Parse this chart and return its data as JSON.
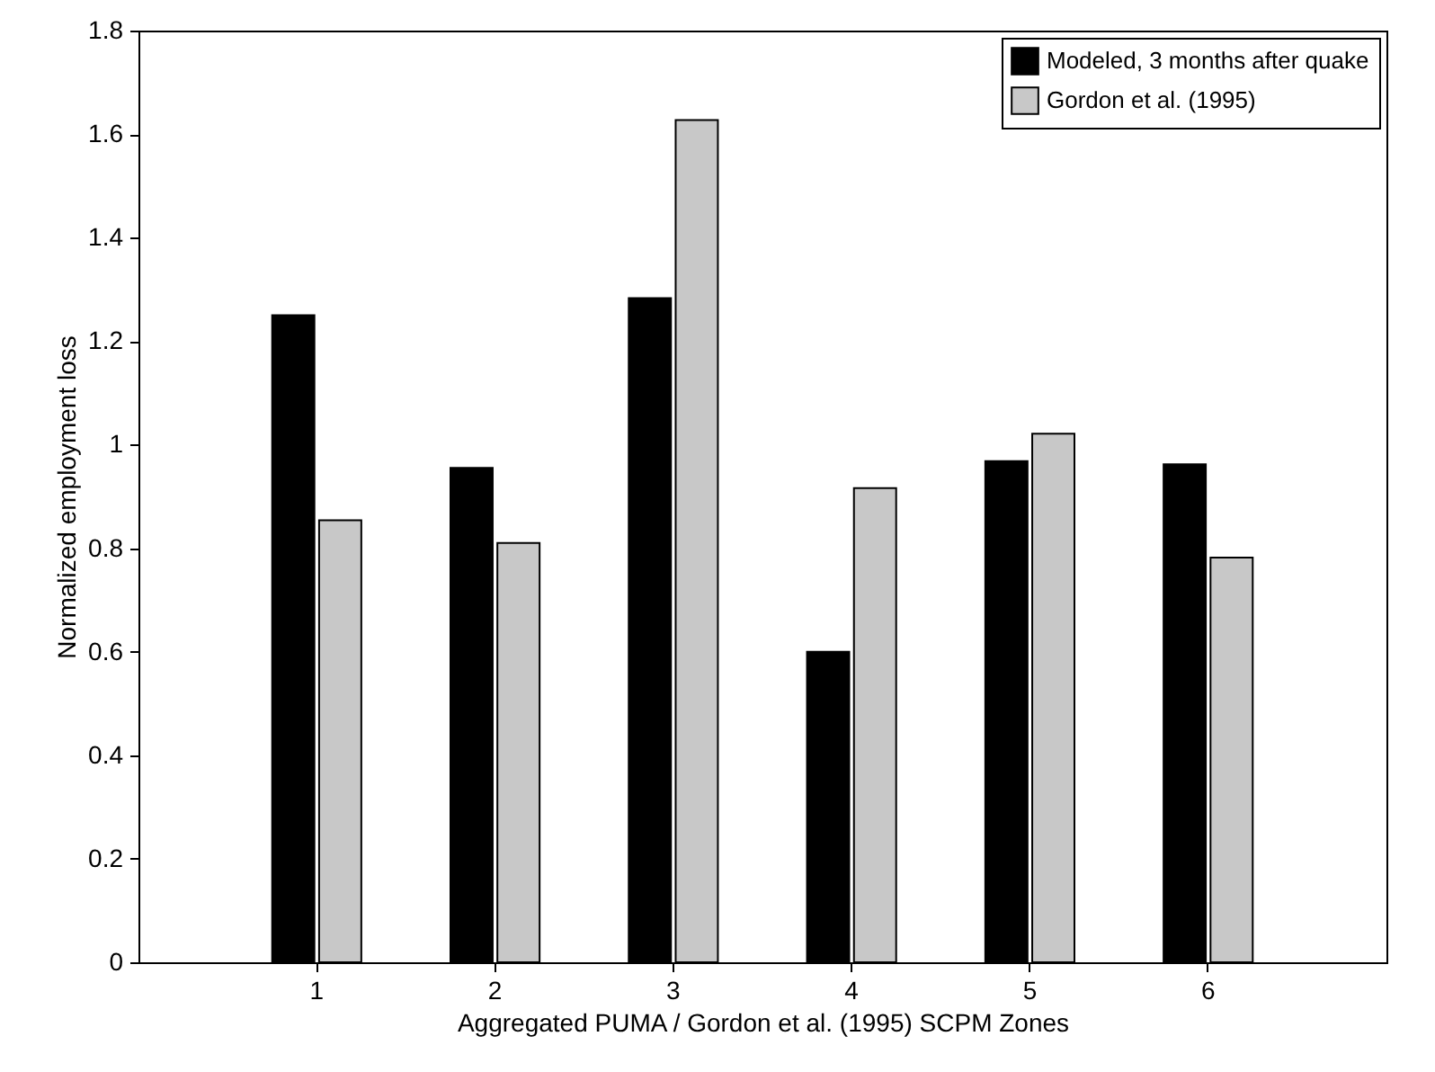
{
  "chart_data": {
    "type": "bar",
    "xlabel": "Aggregated PUMA / Gordon et al. (1995) SCPM Zones",
    "ylabel": "Normalized employment loss",
    "categories": [
      "1",
      "2",
      "3",
      "4",
      "5",
      "6"
    ],
    "series": [
      {
        "name": "Modeled, 3 months after quake",
        "color": "#000000",
        "values": [
          1.25,
          0.955,
          1.283,
          0.6,
          0.968,
          0.962
        ]
      },
      {
        "name": "Gordon et al. (1995)",
        "color": "#c8c8c8",
        "values": [
          0.854,
          0.81,
          1.627,
          0.916,
          1.021,
          0.782
        ]
      }
    ],
    "ylim": [
      0,
      1.8
    ],
    "yticks": [
      0,
      0.2,
      0.4,
      0.6,
      0.8,
      1,
      1.2,
      1.4,
      1.6,
      1.8
    ],
    "grid": false,
    "legend": "top right"
  }
}
